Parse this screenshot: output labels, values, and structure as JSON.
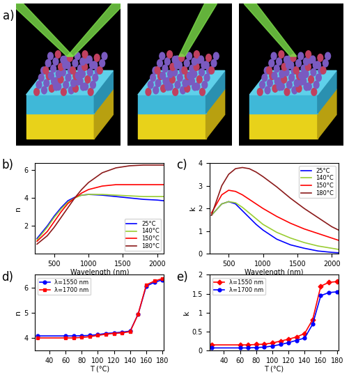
{
  "diagram": {
    "panel_label": "a)"
  },
  "chart_data": [
    {
      "type": "line",
      "panel_label": "b)",
      "x_label": "Wavelength (nm)",
      "y_label": "n",
      "x": [
        250,
        400,
        500,
        600,
        700,
        800,
        900,
        1000,
        1200,
        1400,
        1600,
        1800,
        2000,
        2100
      ],
      "series": [
        {
          "name": "25°C",
          "color": "#0000ff",
          "values": [
            1.1,
            2.0,
            2.7,
            3.3,
            3.8,
            4.05,
            4.2,
            4.25,
            4.2,
            4.1,
            4.0,
            3.9,
            3.85,
            3.8
          ]
        },
        {
          "name": "140°C",
          "color": "#9acd32",
          "values": [
            1.0,
            1.9,
            2.6,
            3.2,
            3.7,
            4.0,
            4.2,
            4.25,
            4.25,
            4.2,
            4.15,
            4.1,
            4.1,
            4.1
          ]
        },
        {
          "name": "150°C",
          "color": "#ff0000",
          "values": [
            0.9,
            1.6,
            2.3,
            3.0,
            3.6,
            4.0,
            4.35,
            4.6,
            4.85,
            4.95,
            4.95,
            4.95,
            4.95,
            4.95
          ]
        },
        {
          "name": "180°C",
          "color": "#8b1a1a",
          "values": [
            0.7,
            1.3,
            1.9,
            2.6,
            3.3,
            4.0,
            4.6,
            5.1,
            5.8,
            6.15,
            6.3,
            6.35,
            6.35,
            6.35
          ]
        }
      ],
      "xlim": [
        220,
        2100
      ],
      "xticks": [
        500,
        1000,
        1500,
        2000
      ],
      "ylim": [
        0,
        6.5
      ],
      "yticks": [
        2,
        4,
        6
      ],
      "grid": false,
      "legend": "lower right"
    },
    {
      "type": "line",
      "panel_label": "c)",
      "x_label": "Wavelength (nm)",
      "y_label": "k",
      "x": [
        250,
        400,
        500,
        600,
        700,
        800,
        900,
        1000,
        1200,
        1400,
        1600,
        1800,
        2000,
        2100
      ],
      "series": [
        {
          "name": "25°C",
          "color": "#0000ff",
          "values": [
            1.7,
            2.2,
            2.3,
            2.2,
            1.9,
            1.6,
            1.3,
            1.05,
            0.65,
            0.4,
            0.25,
            0.13,
            0.07,
            0.05
          ]
        },
        {
          "name": "140°C",
          "color": "#9acd32",
          "values": [
            1.7,
            2.2,
            2.3,
            2.25,
            2.05,
            1.8,
            1.55,
            1.3,
            0.95,
            0.7,
            0.5,
            0.35,
            0.25,
            0.2
          ]
        },
        {
          "name": "150°C",
          "color": "#ff0000",
          "values": [
            1.8,
            2.6,
            2.8,
            2.75,
            2.6,
            2.4,
            2.2,
            2.0,
            1.65,
            1.35,
            1.1,
            0.9,
            0.7,
            0.6
          ]
        },
        {
          "name": "180°C",
          "color": "#8b1a1a",
          "values": [
            1.7,
            3.0,
            3.5,
            3.75,
            3.8,
            3.75,
            3.6,
            3.4,
            2.95,
            2.45,
            2.0,
            1.6,
            1.2,
            1.05
          ]
        }
      ],
      "xlim": [
        220,
        2100
      ],
      "xticks": [
        500,
        1000,
        1500,
        2000
      ],
      "ylim": [
        0,
        4
      ],
      "yticks": [
        0,
        1,
        2,
        3,
        4
      ],
      "grid": false,
      "legend": "upper right"
    },
    {
      "type": "line",
      "panel_label": "d)",
      "x_label": "T (°C)",
      "y_label": "n",
      "x": [
        25,
        60,
        70,
        80,
        90,
        100,
        110,
        120,
        130,
        140,
        150,
        160,
        170,
        180
      ],
      "series": [
        {
          "name": "λ=1550 nm",
          "color": "#0000ff",
          "marker": "circle",
          "values": [
            4.08,
            4.08,
            4.08,
            4.09,
            4.1,
            4.13,
            4.18,
            4.2,
            4.23,
            4.27,
            4.95,
            6.05,
            6.2,
            6.3
          ]
        },
        {
          "name": "λ=1700 nm",
          "color": "#ff0000",
          "marker": "square",
          "values": [
            4.0,
            4.0,
            4.0,
            4.02,
            4.05,
            4.1,
            4.15,
            4.18,
            4.2,
            4.25,
            4.95,
            6.1,
            6.25,
            6.35
          ]
        }
      ],
      "xlim": [
        22,
        182
      ],
      "xticks": [
        40,
        60,
        80,
        100,
        120,
        140,
        160,
        180
      ],
      "ylim": [
        3.5,
        6.5
      ],
      "yticks": [
        4,
        5,
        6
      ],
      "grid": false,
      "legend": "upper left"
    },
    {
      "type": "line",
      "panel_label": "e)",
      "x_label": "T (°C)",
      "y_label": "k",
      "x": [
        25,
        60,
        70,
        80,
        90,
        100,
        110,
        120,
        130,
        140,
        150,
        160,
        170,
        180
      ],
      "series": [
        {
          "name": "λ=1550 nm",
          "color": "#ff0000",
          "marker": "diamond",
          "values": [
            0.15,
            0.15,
            0.15,
            0.16,
            0.17,
            0.2,
            0.25,
            0.3,
            0.36,
            0.45,
            0.82,
            1.7,
            1.8,
            1.82
          ]
        },
        {
          "name": "λ=1700 nm",
          "color": "#0000ff",
          "marker": "circle",
          "values": [
            0.07,
            0.07,
            0.07,
            0.08,
            0.09,
            0.12,
            0.16,
            0.21,
            0.27,
            0.33,
            0.7,
            1.45,
            1.53,
            1.55
          ]
        }
      ],
      "xlim": [
        22,
        182
      ],
      "xticks": [
        40,
        60,
        80,
        100,
        120,
        140,
        160,
        180
      ],
      "ylim": [
        0,
        2
      ],
      "yticks": [
        0,
        0.5,
        1,
        1.5,
        2
      ],
      "grid": false,
      "legend": "upper left"
    }
  ]
}
